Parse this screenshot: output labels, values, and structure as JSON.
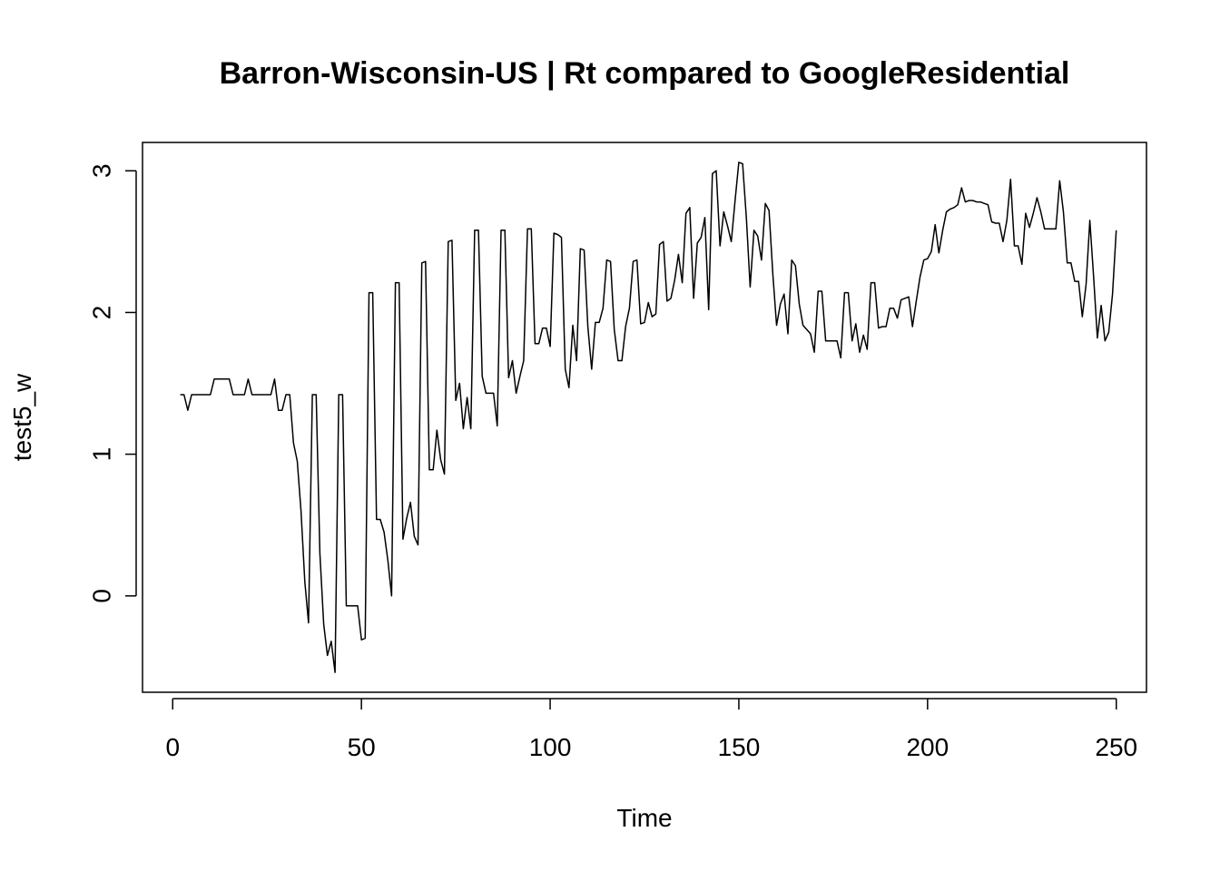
{
  "chart_data": {
    "type": "line",
    "title": "Barron-Wisconsin-US | Rt compared to GoogleResidential",
    "xlabel": "Time",
    "ylabel": "test5_w",
    "xlim": [
      -8,
      258
    ],
    "ylim": [
      -0.68,
      3.2
    ],
    "xticks": [
      0,
      50,
      100,
      150,
      200,
      250
    ],
    "yticks": [
      0,
      1,
      2,
      3
    ],
    "grid": false,
    "series": [
      {
        "values": [
          [
            2,
            1.42
          ],
          [
            3,
            1.42
          ],
          [
            4,
            1.31
          ],
          [
            5,
            1.42
          ],
          [
            6,
            1.42
          ],
          [
            7,
            1.42
          ],
          [
            8,
            1.42
          ],
          [
            9,
            1.42
          ],
          [
            10,
            1.42
          ],
          [
            11,
            1.53
          ],
          [
            12,
            1.53
          ],
          [
            13,
            1.53
          ],
          [
            14,
            1.53
          ],
          [
            15,
            1.53
          ],
          [
            16,
            1.42
          ],
          [
            17,
            1.42
          ],
          [
            18,
            1.42
          ],
          [
            19,
            1.42
          ],
          [
            20,
            1.53
          ],
          [
            21,
            1.42
          ],
          [
            22,
            1.42
          ],
          [
            23,
            1.42
          ],
          [
            24,
            1.42
          ],
          [
            25,
            1.42
          ],
          [
            26,
            1.42
          ],
          [
            27,
            1.53
          ],
          [
            28,
            1.31
          ],
          [
            29,
            1.31
          ],
          [
            30,
            1.42
          ],
          [
            31,
            1.42
          ],
          [
            32,
            1.08
          ],
          [
            33,
            0.95
          ],
          [
            34,
            0.6
          ],
          [
            35,
            0.1
          ],
          [
            36,
            -0.19
          ],
          [
            37,
            1.42
          ],
          [
            38,
            1.42
          ],
          [
            39,
            0.3
          ],
          [
            40,
            -0.2
          ],
          [
            41,
            -0.42
          ],
          [
            42,
            -0.32
          ],
          [
            43,
            -0.54
          ],
          [
            44,
            1.42
          ],
          [
            45,
            1.42
          ],
          [
            46,
            -0.07
          ],
          [
            47,
            -0.07
          ],
          [
            48,
            -0.07
          ],
          [
            49,
            -0.07
          ],
          [
            50,
            -0.31
          ],
          [
            51,
            -0.3
          ],
          [
            52,
            2.14
          ],
          [
            53,
            2.14
          ],
          [
            54,
            0.54
          ],
          [
            55,
            0.54
          ],
          [
            56,
            0.45
          ],
          [
            57,
            0.25
          ],
          [
            58,
            0.0
          ],
          [
            59,
            2.21
          ],
          [
            60,
            2.21
          ],
          [
            61,
            0.4
          ],
          [
            62,
            0.55
          ],
          [
            63,
            0.66
          ],
          [
            64,
            0.42
          ],
          [
            65,
            0.36
          ],
          [
            66,
            2.35
          ],
          [
            67,
            2.36
          ],
          [
            68,
            0.89
          ],
          [
            69,
            0.89
          ],
          [
            70,
            1.17
          ],
          [
            71,
            0.96
          ],
          [
            72,
            0.86
          ],
          [
            73,
            2.5
          ],
          [
            74,
            2.51
          ],
          [
            75,
            1.38
          ],
          [
            76,
            1.5
          ],
          [
            77,
            1.18
          ],
          [
            78,
            1.4
          ],
          [
            79,
            1.18
          ],
          [
            80,
            2.58
          ],
          [
            81,
            2.58
          ],
          [
            82,
            1.55
          ],
          [
            83,
            1.43
          ],
          [
            84,
            1.43
          ],
          [
            85,
            1.43
          ],
          [
            86,
            1.2
          ],
          [
            87,
            2.58
          ],
          [
            88,
            2.58
          ],
          [
            89,
            1.54
          ],
          [
            90,
            1.66
          ],
          [
            91,
            1.43
          ],
          [
            92,
            1.55
          ],
          [
            93,
            1.66
          ],
          [
            94,
            2.59
          ],
          [
            95,
            2.59
          ],
          [
            96,
            1.78
          ],
          [
            97,
            1.78
          ],
          [
            98,
            1.89
          ],
          [
            99,
            1.89
          ],
          [
            100,
            1.76
          ],
          [
            101,
            2.56
          ],
          [
            102,
            2.55
          ],
          [
            103,
            2.53
          ],
          [
            104,
            1.6
          ],
          [
            105,
            1.47
          ],
          [
            106,
            1.91
          ],
          [
            107,
            1.66
          ],
          [
            108,
            2.45
          ],
          [
            109,
            2.44
          ],
          [
            110,
            1.9
          ],
          [
            111,
            1.6
          ],
          [
            112,
            1.93
          ],
          [
            113,
            1.93
          ],
          [
            114,
            2.03
          ],
          [
            115,
            2.37
          ],
          [
            116,
            2.36
          ],
          [
            117,
            1.88
          ],
          [
            118,
            1.66
          ],
          [
            119,
            1.66
          ],
          [
            120,
            1.9
          ],
          [
            121,
            2.03
          ],
          [
            122,
            2.36
          ],
          [
            123,
            2.37
          ],
          [
            124,
            1.92
          ],
          [
            125,
            1.93
          ],
          [
            126,
            2.07
          ],
          [
            127,
            1.97
          ],
          [
            128,
            1.99
          ],
          [
            129,
            2.48
          ],
          [
            130,
            2.5
          ],
          [
            131,
            2.08
          ],
          [
            132,
            2.1
          ],
          [
            133,
            2.23
          ],
          [
            134,
            2.41
          ],
          [
            135,
            2.21
          ],
          [
            136,
            2.7
          ],
          [
            137,
            2.74
          ],
          [
            138,
            2.1
          ],
          [
            139,
            2.49
          ],
          [
            140,
            2.53
          ],
          [
            141,
            2.67
          ],
          [
            142,
            2.02
          ],
          [
            143,
            2.98
          ],
          [
            144,
            3.0
          ],
          [
            145,
            2.47
          ],
          [
            146,
            2.71
          ],
          [
            147,
            2.61
          ],
          [
            148,
            2.5
          ],
          [
            149,
            2.79
          ],
          [
            150,
            3.06
          ],
          [
            151,
            3.05
          ],
          [
            152,
            2.66
          ],
          [
            153,
            2.18
          ],
          [
            154,
            2.58
          ],
          [
            155,
            2.54
          ],
          [
            156,
            2.37
          ],
          [
            157,
            2.77
          ],
          [
            158,
            2.72
          ],
          [
            159,
            2.27
          ],
          [
            160,
            1.91
          ],
          [
            161,
            2.06
          ],
          [
            162,
            2.13
          ],
          [
            163,
            1.85
          ],
          [
            164,
            2.37
          ],
          [
            165,
            2.33
          ],
          [
            166,
            2.06
          ],
          [
            167,
            1.91
          ],
          [
            168,
            1.88
          ],
          [
            169,
            1.85
          ],
          [
            170,
            1.72
          ],
          [
            171,
            2.15
          ],
          [
            172,
            2.15
          ],
          [
            173,
            1.8
          ],
          [
            174,
            1.8
          ],
          [
            175,
            1.8
          ],
          [
            176,
            1.8
          ],
          [
            177,
            1.68
          ],
          [
            178,
            2.14
          ],
          [
            179,
            2.14
          ],
          [
            180,
            1.8
          ],
          [
            181,
            1.92
          ],
          [
            182,
            1.72
          ],
          [
            183,
            1.84
          ],
          [
            184,
            1.74
          ],
          [
            185,
            2.21
          ],
          [
            186,
            2.21
          ],
          [
            187,
            1.89
          ],
          [
            188,
            1.9
          ],
          [
            189,
            1.9
          ],
          [
            190,
            2.03
          ],
          [
            191,
            2.03
          ],
          [
            192,
            1.96
          ],
          [
            193,
            2.09
          ],
          [
            194,
            2.1
          ],
          [
            195,
            2.11
          ],
          [
            196,
            1.9
          ],
          [
            197,
            2.08
          ],
          [
            198,
            2.25
          ],
          [
            199,
            2.37
          ],
          [
            200,
            2.38
          ],
          [
            201,
            2.43
          ],
          [
            202,
            2.62
          ],
          [
            203,
            2.42
          ],
          [
            204,
            2.58
          ],
          [
            205,
            2.71
          ],
          [
            206,
            2.73
          ],
          [
            207,
            2.74
          ],
          [
            208,
            2.76
          ],
          [
            209,
            2.88
          ],
          [
            210,
            2.78
          ],
          [
            211,
            2.79
          ],
          [
            212,
            2.79
          ],
          [
            213,
            2.78
          ],
          [
            214,
            2.78
          ],
          [
            215,
            2.77
          ],
          [
            216,
            2.76
          ],
          [
            217,
            2.64
          ],
          [
            218,
            2.63
          ],
          [
            219,
            2.63
          ],
          [
            220,
            2.5
          ],
          [
            221,
            2.65
          ],
          [
            222,
            2.94
          ],
          [
            223,
            2.47
          ],
          [
            224,
            2.47
          ],
          [
            225,
            2.34
          ],
          [
            226,
            2.7
          ],
          [
            227,
            2.6
          ],
          [
            228,
            2.7
          ],
          [
            229,
            2.81
          ],
          [
            230,
            2.71
          ],
          [
            231,
            2.59
          ],
          [
            232,
            2.59
          ],
          [
            233,
            2.59
          ],
          [
            234,
            2.59
          ],
          [
            235,
            2.93
          ],
          [
            236,
            2.71
          ],
          [
            237,
            2.35
          ],
          [
            238,
            2.35
          ],
          [
            239,
            2.22
          ],
          [
            240,
            2.22
          ],
          [
            241,
            1.97
          ],
          [
            242,
            2.2
          ],
          [
            243,
            2.65
          ],
          [
            244,
            2.25
          ],
          [
            245,
            1.82
          ],
          [
            246,
            2.05
          ],
          [
            247,
            1.8
          ],
          [
            248,
            1.86
          ],
          [
            249,
            2.13
          ],
          [
            250,
            2.58
          ]
        ]
      }
    ]
  }
}
